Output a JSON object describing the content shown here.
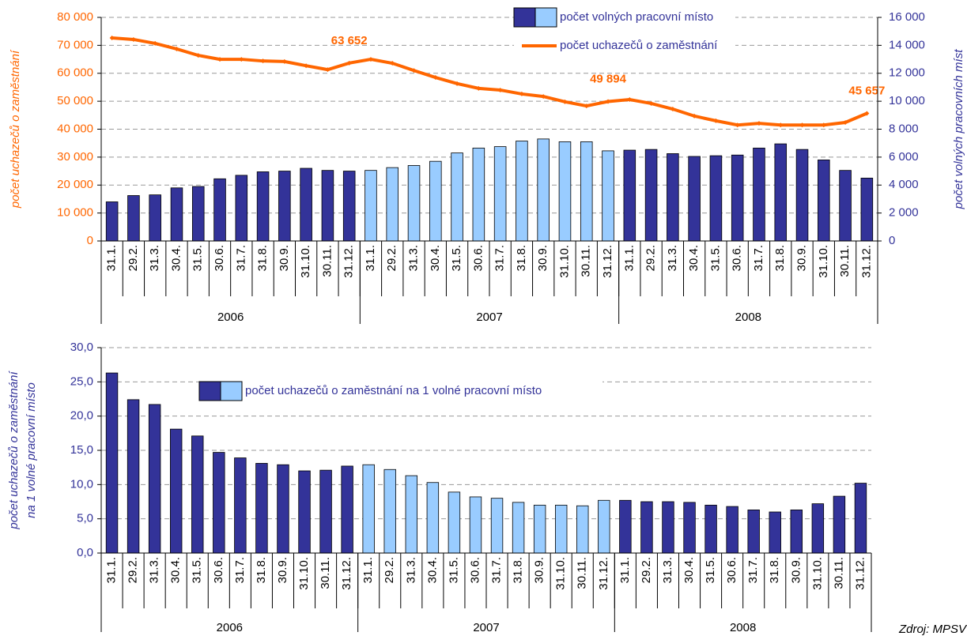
{
  "chart_data": [
    {
      "type": "bar_line",
      "categories": [
        "31.1.",
        "29.2.",
        "31.3.",
        "30.4.",
        "31.5.",
        "30.6.",
        "31.7.",
        "31.8.",
        "30.9.",
        "31.10.",
        "30.11.",
        "31.12.",
        "31.1.",
        "29.2.",
        "31.3.",
        "30.4.",
        "31.5.",
        "30.6.",
        "31.7.",
        "31.8.",
        "30.9.",
        "31.10.",
        "30.11.",
        "31.12.",
        "31.1.",
        "29.2.",
        "31.3.",
        "30.4.",
        "31.5.",
        "30.6.",
        "31.7.",
        "31.8.",
        "30.9.",
        "31.10.",
        "30.11.",
        "31.12."
      ],
      "groups": [
        "2006",
        "2007",
        "2008"
      ],
      "ylabel": "počet uchazečů o zaměstnání",
      "y2label": "počet volných pracovních míst",
      "ylim": [
        0,
        80000
      ],
      "yticks": [
        0,
        {
          "value": 10000,
          "label": "10 000"
        },
        {
          "value": 20000,
          "label": "20 000"
        },
        {
          "value": 30000,
          "label": "30 000"
        },
        {
          "value": 40000,
          "label": "40 000"
        },
        {
          "value": 50000,
          "label": "50 000"
        },
        {
          "value": 60000,
          "label": "60 000"
        },
        {
          "value": 70000,
          "label": "70 000"
        },
        {
          "value": 80000,
          "label": "80 000"
        }
      ],
      "y2lim": [
        0,
        16000
      ],
      "y2ticks": [
        0,
        {
          "value": 2000,
          "label": "2 000"
        },
        {
          "value": 4000,
          "label": "4 000"
        },
        {
          "value": 6000,
          "label": "6 000"
        },
        {
          "value": 8000,
          "label": "8 000"
        },
        {
          "value": 10000,
          "label": "10 000"
        },
        {
          "value": 12000,
          "label": "12 000"
        },
        {
          "value": 14000,
          "label": "14 000"
        },
        {
          "value": 16000,
          "label": "16 000"
        }
      ],
      "grid": true,
      "series": [
        {
          "name": "počet volných pracovní místo",
          "type": "bar",
          "axis": "y2",
          "colors": [
            "#333399",
            "#99ccff",
            "#333399"
          ],
          "values": [
            2800,
            3250,
            3300,
            3800,
            3900,
            4450,
            4700,
            4950,
            5000,
            5200,
            5050,
            5000,
            5050,
            5250,
            5400,
            5700,
            6300,
            6650,
            6750,
            7150,
            7300,
            7100,
            7100,
            6450,
            6500,
            6550,
            6250,
            6050,
            6100,
            6150,
            6650,
            6950,
            6550,
            5800,
            5050,
            4500
          ]
        },
        {
          "name": "počet uchazečů o zaměstnání",
          "type": "line",
          "color": "#ff6600",
          "values": [
            72650,
            72100,
            70700,
            68700,
            66400,
            65000,
            65000,
            64400,
            64200,
            62700,
            61300,
            63652,
            65000,
            63600,
            61000,
            58500,
            56300,
            54600,
            54000,
            52600,
            51700,
            49800,
            48300,
            49894,
            50600,
            49200,
            47200,
            44700,
            43000,
            41500,
            42100,
            41500,
            41500,
            41500,
            42400,
            45657
          ],
          "value_labels": [
            null,
            null,
            null,
            null,
            null,
            null,
            null,
            null,
            null,
            null,
            null,
            "63 652",
            null,
            null,
            null,
            null,
            null,
            null,
            null,
            null,
            null,
            null,
            null,
            "49 894",
            null,
            null,
            null,
            null,
            null,
            null,
            null,
            null,
            null,
            null,
            null,
            "45 657"
          ]
        }
      ]
    },
    {
      "type": "bar",
      "categories": [
        "31.1.",
        "29.2.",
        "31.3.",
        "30.4.",
        "31.5.",
        "30.6.",
        "31.7.",
        "31.8.",
        "30.9.",
        "31.10.",
        "30.11.",
        "31.12.",
        "31.1.",
        "29.2.",
        "31.3.",
        "30.4.",
        "31.5.",
        "30.6.",
        "31.7.",
        "31.8.",
        "30.9.",
        "31.10.",
        "30.11.",
        "31.12.",
        "31.1.",
        "29.2.",
        "31.3.",
        "30.4.",
        "31.5.",
        "30.6.",
        "31.7.",
        "31.8.",
        "30.9.",
        "31.10.",
        "30.11.",
        "31.12."
      ],
      "groups": [
        "2006",
        "2007",
        "2008"
      ],
      "ylabel": [
        "počet uchazečů o zaměstnání",
        "na 1 volné pracovní místo"
      ],
      "ylim": [
        0,
        30
      ],
      "yticks": [
        {
          "value": 0,
          "label": "0,0"
        },
        {
          "value": 5,
          "label": "5,0"
        },
        {
          "value": 10,
          "label": "10,0"
        },
        {
          "value": 15,
          "label": "15,0"
        },
        {
          "value": 20,
          "label": "20,0"
        },
        {
          "value": 25,
          "label": "25,0"
        },
        {
          "value": 30,
          "label": "30,0"
        }
      ],
      "grid": true,
      "series": [
        {
          "name": "počet uchazečů o zaměstnání na 1 volné pracovní místo",
          "type": "bar",
          "colors": [
            "#333399",
            "#99ccff",
            "#333399"
          ],
          "values": [
            26.3,
            22.4,
            21.7,
            18.1,
            17.1,
            14.7,
            13.9,
            13.1,
            12.9,
            12.0,
            12.1,
            12.7,
            12.9,
            12.2,
            11.3,
            10.3,
            8.9,
            8.2,
            8.0,
            7.4,
            7.0,
            7.0,
            6.9,
            7.7,
            7.7,
            7.5,
            7.5,
            7.4,
            7.0,
            6.8,
            6.3,
            6.0,
            6.3,
            7.2,
            8.3,
            10.2
          ]
        }
      ],
      "source": "Zdroj: MPSV"
    }
  ]
}
